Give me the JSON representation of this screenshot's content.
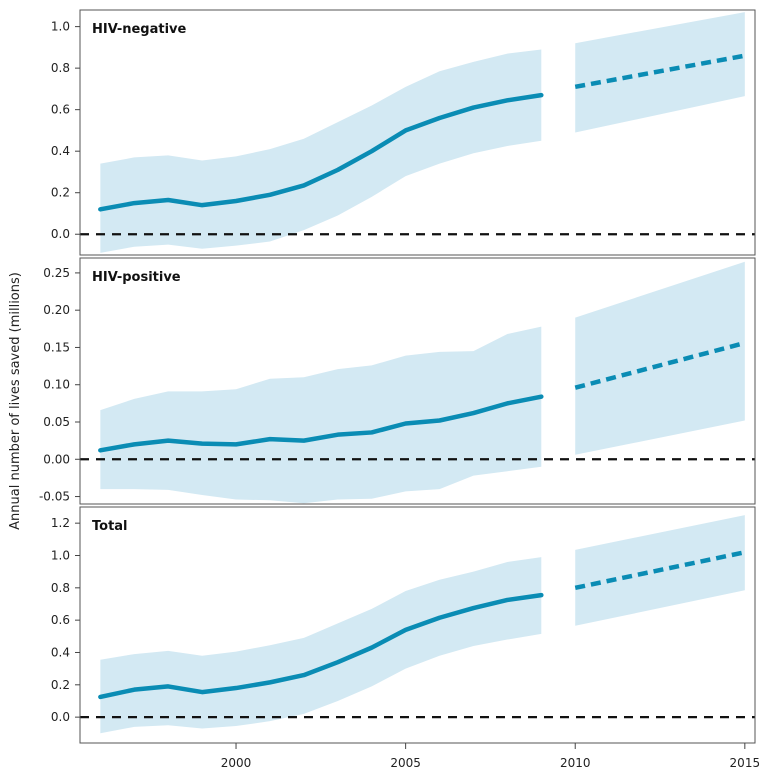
{
  "chart_data": {
    "type": "line",
    "ylabel": "Annual number of lives saved (millions)",
    "x_ticks": [
      2000,
      2005,
      2010,
      2015
    ],
    "colors": {
      "band": "#d3e9f3",
      "line": "#0a8cb4",
      "zero": "#111111"
    },
    "panels": [
      {
        "title": "HIV-negative",
        "ylim": [
          -0.1,
          1.08
        ],
        "y_ticks": [
          "0.0",
          "0.2",
          "0.4",
          "0.6",
          "0.8",
          "1.0"
        ],
        "observed": {
          "x": [
            1996,
            1997,
            1998,
            1999,
            2000,
            2001,
            2002,
            2003,
            2004,
            2005,
            2006,
            2007,
            2008,
            2009
          ],
          "y": [
            0.12,
            0.15,
            0.165,
            0.14,
            0.16,
            0.19,
            0.235,
            0.31,
            0.4,
            0.5,
            0.56,
            0.61,
            0.645,
            0.67
          ],
          "lower": [
            -0.09,
            -0.06,
            -0.05,
            -0.07,
            -0.055,
            -0.035,
            0.02,
            0.09,
            0.18,
            0.28,
            0.34,
            0.39,
            0.425,
            0.45
          ],
          "upper": [
            0.34,
            0.37,
            0.38,
            0.355,
            0.375,
            0.41,
            0.46,
            0.54,
            0.62,
            0.71,
            0.785,
            0.83,
            0.87,
            0.89
          ]
        },
        "projected": {
          "x": [
            2010,
            2015
          ],
          "y": [
            0.71,
            0.86
          ],
          "lower": [
            0.49,
            0.665
          ],
          "upper": [
            0.92,
            1.07
          ]
        }
      },
      {
        "title": "HIV-positive",
        "ylim": [
          -0.06,
          0.27
        ],
        "y_ticks": [
          "-0.05",
          "0.00",
          "0.05",
          "0.10",
          "0.15",
          "0.20",
          "0.25"
        ],
        "observed": {
          "x": [
            1996,
            1997,
            1998,
            1999,
            2000,
            2001,
            2002,
            2003,
            2004,
            2005,
            2006,
            2007,
            2008,
            2009
          ],
          "y": [
            0.012,
            0.02,
            0.025,
            0.021,
            0.02,
            0.027,
            0.025,
            0.033,
            0.036,
            0.048,
            0.052,
            0.062,
            0.075,
            0.084
          ],
          "lower": [
            -0.04,
            -0.04,
            -0.041,
            -0.048,
            -0.054,
            -0.055,
            -0.059,
            -0.054,
            -0.053,
            -0.043,
            -0.04,
            -0.022,
            -0.016,
            -0.01
          ],
          "upper": [
            0.066,
            0.081,
            0.091,
            0.091,
            0.094,
            0.108,
            0.11,
            0.121,
            0.126,
            0.139,
            0.144,
            0.145,
            0.168,
            0.178
          ]
        },
        "projected": {
          "x": [
            2010,
            2015
          ],
          "y": [
            0.096,
            0.156
          ],
          "lower": [
            0.006,
            0.052
          ],
          "upper": [
            0.19,
            0.265
          ]
        }
      },
      {
        "title": "Total",
        "ylim": [
          -0.16,
          1.3
        ],
        "y_ticks": [
          "0.0",
          "0.2",
          "0.4",
          "0.6",
          "0.8",
          "1.0",
          "1.2"
        ],
        "observed": {
          "x": [
            1996,
            1997,
            1998,
            1999,
            2000,
            2001,
            2002,
            2003,
            2004,
            2005,
            2006,
            2007,
            2008,
            2009
          ],
          "y": [
            0.125,
            0.17,
            0.19,
            0.155,
            0.18,
            0.215,
            0.26,
            0.34,
            0.43,
            0.54,
            0.615,
            0.675,
            0.725,
            0.755
          ],
          "lower": [
            -0.1,
            -0.06,
            -0.05,
            -0.07,
            -0.055,
            -0.025,
            0.02,
            0.1,
            0.19,
            0.3,
            0.38,
            0.44,
            0.48,
            0.515
          ],
          "upper": [
            0.355,
            0.39,
            0.41,
            0.38,
            0.405,
            0.445,
            0.49,
            0.58,
            0.67,
            0.78,
            0.85,
            0.9,
            0.96,
            0.99
          ]
        },
        "projected": {
          "x": [
            2010,
            2015
          ],
          "y": [
            0.8,
            1.02
          ],
          "lower": [
            0.565,
            0.785
          ],
          "upper": [
            1.035,
            1.25
          ]
        }
      }
    ]
  }
}
